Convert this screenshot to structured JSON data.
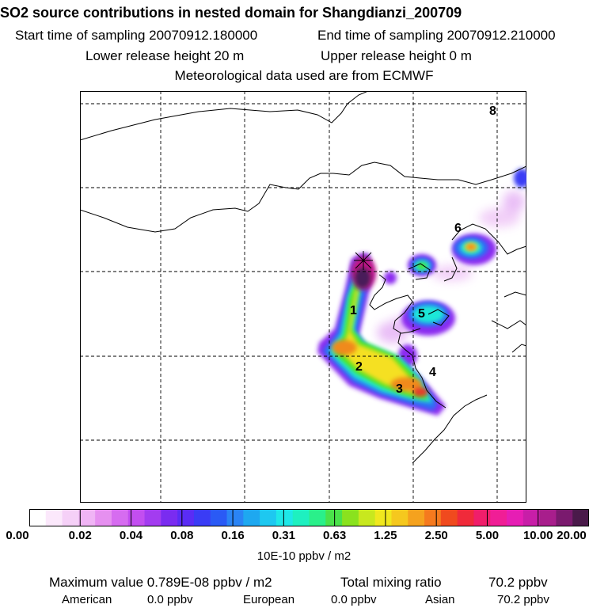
{
  "header": {
    "title": "SO2 source contributions in nested domain for Shangdianzi_200709",
    "start_time": "Start time of sampling 20070912.180000",
    "end_time": "End time of sampling 20070912.210000",
    "lower_height": "Lower release height   20 m",
    "upper_height": "Upper release height    0 m",
    "met_data": "Meteorological data used are from ECMWF"
  },
  "map": {
    "source_labels": [
      "1",
      "2",
      "3",
      "4",
      "5",
      "6",
      "8"
    ],
    "colors": {
      "dark_max": "#4a1a5a",
      "magenta": "#c2188a",
      "red": "#e63a2a",
      "orange": "#f08a1e",
      "yellow": "#f5e021",
      "green": "#4fe21e",
      "cyan": "#1ee8d8",
      "blue": "#2e6cf5",
      "purple": "#8c2cf0",
      "light_purple": "#e6b4f5"
    }
  },
  "legend": {
    "ticks": [
      "0.00",
      "0.02",
      "0.04",
      "0.08",
      "0.16",
      "0.31",
      "0.63",
      "1.25",
      "2.50",
      "5.00",
      "10.00",
      "20.00"
    ],
    "colors": [
      "#ffffff",
      "#fbe8fb",
      "#f5d0f7",
      "#f0b4f5",
      "#e690f0",
      "#d66cf0",
      "#c24ef0",
      "#a33cf0",
      "#7a2cf0",
      "#5a2cf5",
      "#3a3cf5",
      "#2a5af5",
      "#2a84f5",
      "#1ea8f0",
      "#1ec8f0",
      "#1ee8e8",
      "#1ef0c0",
      "#2af08a",
      "#4ae24a",
      "#8ae21e",
      "#c8e81e",
      "#f0e81e",
      "#f5c81e",
      "#f5a21e",
      "#f57a1e",
      "#f04a1e",
      "#f02a3a",
      "#f01e6a",
      "#f01e96",
      "#e61eb4",
      "#c81ea8",
      "#a81e8c",
      "#7a1a6e",
      "#4a1a4a"
    ],
    "unit": "10E-10 ppbv / m2"
  },
  "stats": {
    "max_value": "Maximum value  0.789E-08 ppbv / m2",
    "total_mixing": "Total mixing ratio",
    "total_value": "70.2 ppbv",
    "american_label": "American",
    "american_value": "0.0 ppbv",
    "european_label": "European",
    "european_value": "0.0 ppbv",
    "asian_label": "Asian",
    "asian_value": "70.2 ppbv"
  }
}
